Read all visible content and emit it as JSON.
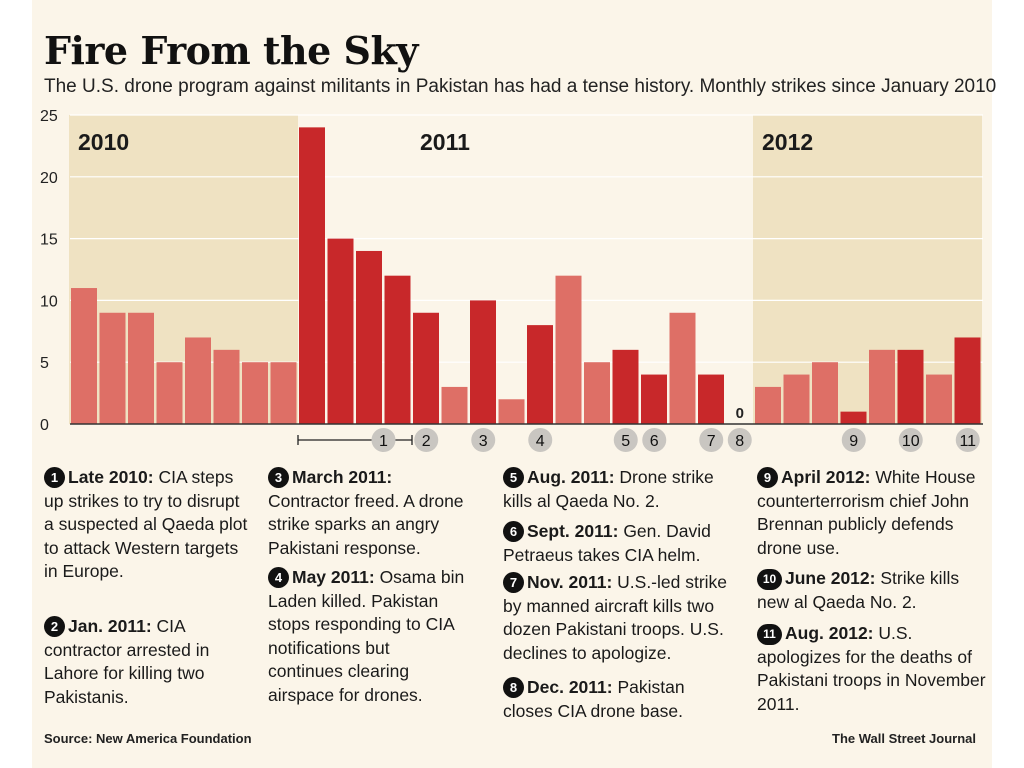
{
  "title": "Fire From the Sky",
  "subtitle": "The U.S. drone program against militants in Pakistan has had a tense history. Monthly strikes since January 2010",
  "chart_data": {
    "type": "bar",
    "title": "Fire From the Sky",
    "ylim": [
      0,
      25
    ],
    "yticks": [
      0,
      5,
      10,
      15,
      20,
      25
    ],
    "year_labels": [
      "2010",
      "2011",
      "2012"
    ],
    "values": [
      11,
      9,
      9,
      5,
      7,
      6,
      5,
      5,
      24,
      15,
      14,
      12,
      9,
      3,
      10,
      2,
      8,
      12,
      5,
      6,
      4,
      9,
      4,
      0,
      3,
      4,
      5,
      1,
      6,
      6,
      4,
      7
    ],
    "highlighted": [
      8,
      9,
      10,
      11,
      12,
      14,
      16,
      19,
      20,
      22,
      27,
      29,
      31
    ],
    "zero_label": "0",
    "markers": [
      {
        "label": "1",
        "bar": 10.5,
        "range": [
          8,
          11
        ]
      },
      {
        "label": "2",
        "bar": 12
      },
      {
        "label": "3",
        "bar": 14
      },
      {
        "label": "4",
        "bar": 16
      },
      {
        "label": "5",
        "bar": 19
      },
      {
        "label": "6",
        "bar": 20
      },
      {
        "label": "7",
        "bar": 22
      },
      {
        "label": "8",
        "bar": 23
      },
      {
        "label": "9",
        "bar": 27
      },
      {
        "label": "10",
        "bar": 29
      },
      {
        "label": "11",
        "bar": 31
      }
    ],
    "colors": {
      "highlight": "#c8282a",
      "normal": "#de6f66",
      "band": "#efe2c2",
      "plot_bg": "#fbf5e9"
    }
  },
  "annotations": [
    {
      "num": "1",
      "head": "Late 2010:",
      "body": " CIA steps up strikes to try to disrupt a suspected al Qaeda plot to attack Western targets in Europe."
    },
    {
      "num": "2",
      "head": "Jan. 2011:",
      "body": " CIA contractor arrested in Lahore for killing two Pakistanis."
    },
    {
      "num": "3",
      "head": "March 2011:",
      "body": " Contractor freed. A drone strike sparks an angry Pakistani response."
    },
    {
      "num": "4",
      "head": "May 2011:",
      "body": " Osama bin Laden killed. Pakistan stops responding to CIA notifications but continues clearing airspace for drones."
    },
    {
      "num": "5",
      "head": "Aug. 2011:",
      "body": " Drone strike kills al Qaeda No. 2."
    },
    {
      "num": "6",
      "head": "Sept. 2011:",
      "body": " Gen. David Petraeus takes CIA helm."
    },
    {
      "num": "7",
      "head": "Nov. 2011:",
      "body": " U.S.-led strike by manned aircraft kills two dozen Pakistani troops. U.S. declines to apologize."
    },
    {
      "num": "8",
      "head": "Dec. 2011:",
      "body": " Pakistan closes CIA drone base."
    },
    {
      "num": "9",
      "head": "April 2012:",
      "body": " White House counterterrorism chief John Brennan publicly defends drone use."
    },
    {
      "num": "10",
      "head": "June 2012:",
      "body": " Strike kills new al Qaeda No. 2."
    },
    {
      "num": "11",
      "head": "Aug. 2012:",
      "body": " U.S. apologizes for the deaths of Pakistani troops in November 2011."
    }
  ],
  "footer": {
    "source": "Source: New America Foundation",
    "credit": "The Wall Street Journal"
  }
}
